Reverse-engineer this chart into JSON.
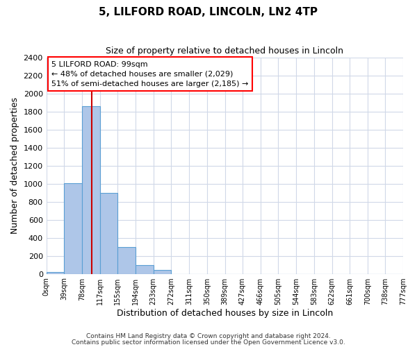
{
  "title": "5, LILFORD ROAD, LINCOLN, LN2 4TP",
  "subtitle": "Size of property relative to detached houses in Lincoln",
  "xlabel": "Distribution of detached houses by size in Lincoln",
  "ylabel": "Number of detached properties",
  "bar_color": "#aec6e8",
  "bar_edge_color": "#5a9fd4",
  "bin_edges": [
    0,
    39,
    78,
    117,
    155,
    194,
    233,
    272,
    311,
    350,
    389,
    427,
    466,
    505,
    544,
    583,
    622,
    661,
    700,
    738,
    777
  ],
  "bar_heights": [
    20,
    1005,
    1860,
    900,
    295,
    100,
    40,
    0,
    0,
    0,
    0,
    0,
    0,
    0,
    0,
    0,
    0,
    0,
    0,
    0
  ],
  "tick_labels": [
    "0sqm",
    "39sqm",
    "78sqm",
    "117sqm",
    "155sqm",
    "194sqm",
    "233sqm",
    "272sqm",
    "311sqm",
    "350sqm",
    "389sqm",
    "427sqm",
    "466sqm",
    "505sqm",
    "544sqm",
    "583sqm",
    "622sqm",
    "661sqm",
    "700sqm",
    "738sqm",
    "777sqm"
  ],
  "ylim": [
    0,
    2400
  ],
  "yticks": [
    0,
    200,
    400,
    600,
    800,
    1000,
    1200,
    1400,
    1600,
    1800,
    2000,
    2200,
    2400
  ],
  "vline_x": 99,
  "vline_color": "#cc0000",
  "annotation_box_text": "5 LILFORD ROAD: 99sqm\n← 48% of detached houses are smaller (2,029)\n51% of semi-detached houses are larger (2,185) →",
  "footer_line1": "Contains HM Land Registry data © Crown copyright and database right 2024.",
  "footer_line2": "Contains public sector information licensed under the Open Government Licence v3.0.",
  "background_color": "#ffffff",
  "grid_color": "#d0d8e8"
}
